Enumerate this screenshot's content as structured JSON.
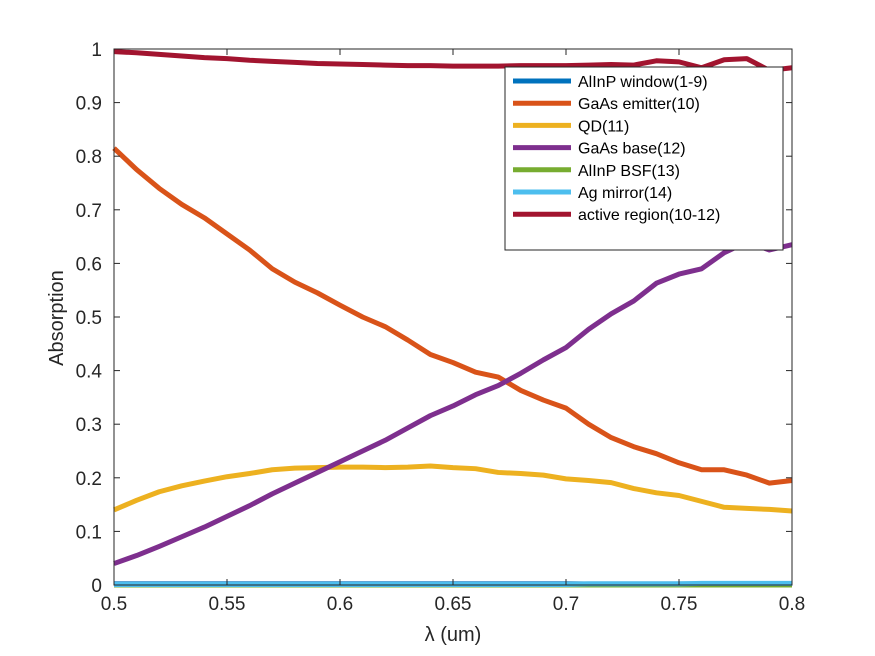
{
  "chart_data": {
    "type": "line",
    "xlabel": "λ (um)",
    "ylabel": "Absorption",
    "xlim": [
      0.5,
      0.8
    ],
    "ylim": [
      0,
      1
    ],
    "xticks": [
      "0.5",
      "0.55",
      "0.6",
      "0.65",
      "0.7",
      "0.75",
      "0.8"
    ],
    "yticks": [
      "0",
      "0.1",
      "0.2",
      "0.3",
      "0.4",
      "0.5",
      "0.6",
      "0.7",
      "0.8",
      "0.9",
      "1"
    ],
    "grid": false,
    "legend_position": "top-right",
    "x": [
      0.5,
      0.51,
      0.52,
      0.53,
      0.54,
      0.55,
      0.56,
      0.57,
      0.58,
      0.59,
      0.6,
      0.61,
      0.62,
      0.63,
      0.64,
      0.65,
      0.66,
      0.67,
      0.68,
      0.69,
      0.7,
      0.71,
      0.72,
      0.73,
      0.74,
      0.75,
      0.76,
      0.77,
      0.78,
      0.79,
      0.8
    ],
    "series": [
      {
        "name": "AlInP window(1-9)",
        "color": "#0072BD",
        "values": [
          0.002,
          0.002,
          0.002,
          0.002,
          0.002,
          0.002,
          0.002,
          0.002,
          0.002,
          0.002,
          0.002,
          0.002,
          0.002,
          0.002,
          0.002,
          0.002,
          0.002,
          0.002,
          0.002,
          0.002,
          0.002,
          0.002,
          0.002,
          0.002,
          0.002,
          0.002,
          0.002,
          0.002,
          0.002,
          0.002,
          0.002
        ]
      },
      {
        "name": "GaAs emitter(10)",
        "color": "#D95319",
        "values": [
          0.815,
          0.775,
          0.74,
          0.71,
          0.685,
          0.655,
          0.625,
          0.59,
          0.565,
          0.545,
          0.522,
          0.5,
          0.482,
          0.457,
          0.43,
          0.415,
          0.397,
          0.388,
          0.363,
          0.345,
          0.33,
          0.3,
          0.275,
          0.258,
          0.245,
          0.228,
          0.215,
          0.215,
          0.205,
          0.19,
          0.195
        ]
      },
      {
        "name": "QD(11)",
        "color": "#EDB120",
        "values": [
          0.14,
          0.158,
          0.174,
          0.185,
          0.194,
          0.202,
          0.208,
          0.215,
          0.218,
          0.219,
          0.22,
          0.22,
          0.219,
          0.22,
          0.222,
          0.219,
          0.217,
          0.21,
          0.208,
          0.205,
          0.198,
          0.195,
          0.191,
          0.18,
          0.172,
          0.167,
          0.156,
          0.145,
          0.143,
          0.141,
          0.138
        ]
      },
      {
        "name": "GaAs base(12)",
        "color": "#7E2F8E",
        "values": [
          0.04,
          0.055,
          0.072,
          0.09,
          0.108,
          0.128,
          0.148,
          0.17,
          0.19,
          0.21,
          0.23,
          0.25,
          0.27,
          0.293,
          0.316,
          0.334,
          0.355,
          0.372,
          0.395,
          0.42,
          0.443,
          0.477,
          0.506,
          0.53,
          0.563,
          0.58,
          0.59,
          0.62,
          0.64,
          0.625,
          0.635
        ]
      },
      {
        "name": "AlInP BSF(13)",
        "color": "#77AC30",
        "values": [
          0.0,
          0.0,
          0.0,
          0.0,
          0.0,
          0.0,
          0.0,
          0.0,
          0.0,
          0.0,
          0.0,
          0.0,
          0.0,
          0.0,
          0.0,
          0.0,
          0.0,
          0.0,
          0.0,
          0.0,
          0.0,
          0.0,
          0.0,
          0.0,
          0.0,
          0.0,
          0.0,
          0.0,
          0.0,
          0.0,
          0.0
        ]
      },
      {
        "name": "Ag mirror(14)",
        "color": "#4DBEEE",
        "values": [
          0.001,
          0.001,
          0.001,
          0.001,
          0.001,
          0.001,
          0.001,
          0.001,
          0.001,
          0.001,
          0.001,
          0.001,
          0.001,
          0.001,
          0.001,
          0.001,
          0.001,
          0.001,
          0.001,
          0.001,
          0.001,
          0.002,
          0.002,
          0.002,
          0.002,
          0.002,
          0.003,
          0.003,
          0.003,
          0.003,
          0.003
        ]
      },
      {
        "name": "active region(10-12)",
        "color": "#A2142F",
        "values": [
          0.995,
          0.993,
          0.99,
          0.987,
          0.984,
          0.982,
          0.979,
          0.977,
          0.975,
          0.973,
          0.972,
          0.971,
          0.97,
          0.969,
          0.969,
          0.968,
          0.968,
          0.968,
          0.969,
          0.969,
          0.969,
          0.97,
          0.971,
          0.97,
          0.978,
          0.976,
          0.965,
          0.98,
          0.982,
          0.96,
          0.965
        ]
      }
    ]
  }
}
